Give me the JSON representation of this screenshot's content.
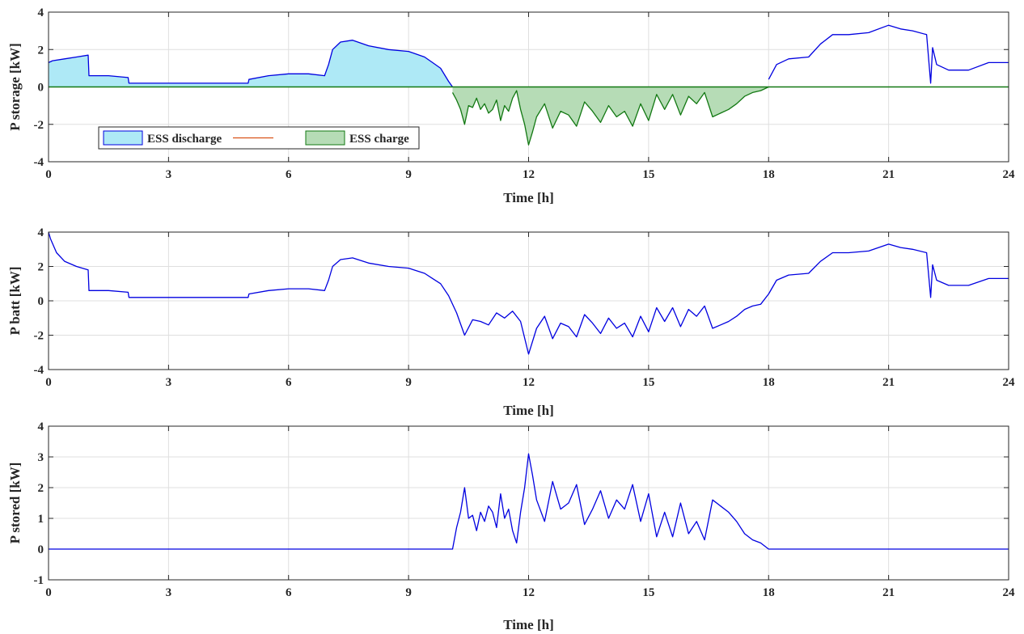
{
  "chart_data": [
    {
      "type": "area",
      "xlabel": "Time [h]",
      "ylabel": "P storage [kW]",
      "xlim": [
        0,
        24
      ],
      "ylim": [
        -4,
        4
      ],
      "xticks": [
        "0",
        "3",
        "6",
        "9",
        "12",
        "15",
        "18",
        "21",
        "24"
      ],
      "yticks": [
        "-4",
        "-2",
        "0",
        "2",
        "4"
      ],
      "grid": true,
      "legend_position": "lower-left",
      "series": [
        {
          "name": "ESS discharge",
          "fill_color": "#aee9f6",
          "line_color": "#0000e0",
          "x": [
            0,
            0.1,
            0.4,
            0.7,
            0.99,
            1.01,
            1.5,
            1.99,
            2.01,
            3,
            4,
            4.99,
            5.01,
            5.5,
            6,
            6.5,
            6.9,
            7.0,
            7.1,
            7.3,
            7.6,
            8,
            8.5,
            9,
            9.4,
            9.6,
            9.8,
            10.0,
            10.1
          ],
          "values": [
            1.3,
            1.4,
            1.5,
            1.6,
            1.7,
            0.6,
            0.6,
            0.5,
            0.2,
            0.2,
            0.2,
            0.2,
            0.4,
            0.6,
            0.7,
            0.7,
            0.6,
            1.2,
            2.0,
            2.4,
            2.5,
            2.2,
            2.0,
            1.9,
            1.6,
            1.3,
            1.0,
            0.3,
            0
          ]
        },
        {
          "name": "ESS charge",
          "fill_color": "#b6dcb6",
          "line_color": "#127812",
          "x": [
            10.1,
            10.2,
            10.3,
            10.4,
            10.5,
            10.6,
            10.7,
            10.8,
            10.9,
            11.0,
            11.1,
            11.2,
            11.3,
            11.4,
            11.5,
            11.6,
            11.7,
            11.8,
            11.9,
            12.0,
            12.1,
            12.2,
            12.4,
            12.6,
            12.8,
            13.0,
            13.2,
            13.4,
            13.6,
            13.8,
            14.0,
            14.2,
            14.4,
            14.6,
            14.8,
            15.0,
            15.2,
            15.4,
            15.6,
            15.8,
            16.0,
            16.2,
            16.4,
            16.6,
            16.8,
            17.0,
            17.2,
            17.4,
            17.6,
            17.8,
            18.0
          ],
          "values": [
            -0.3,
            -0.7,
            -1.2,
            -2.0,
            -1.0,
            -1.1,
            -0.6,
            -1.2,
            -0.9,
            -1.4,
            -1.2,
            -0.7,
            -1.8,
            -1.0,
            -1.3,
            -0.6,
            -0.2,
            -1.2,
            -2.0,
            -3.1,
            -2.4,
            -1.6,
            -0.9,
            -2.2,
            -1.3,
            -1.5,
            -2.1,
            -0.8,
            -1.3,
            -1.9,
            -1.0,
            -1.6,
            -1.3,
            -2.1,
            -0.9,
            -1.8,
            -0.4,
            -1.2,
            -0.4,
            -1.5,
            -0.5,
            -0.9,
            -0.3,
            -1.6,
            -1.4,
            -1.2,
            -0.9,
            -0.5,
            -0.3,
            -0.2,
            0
          ]
        },
        {
          "name": "",
          "line_color": "#0000e0",
          "x": [
            18.0,
            18.2,
            18.5,
            19.0,
            19.3,
            19.6,
            20.0,
            20.5,
            21.0,
            21.3,
            21.6,
            21.95,
            22.05,
            22.1,
            22.2,
            22.5,
            23.0,
            23.5,
            24.0
          ],
          "values": [
            0.4,
            1.2,
            1.5,
            1.6,
            2.3,
            2.8,
            2.8,
            2.9,
            3.3,
            3.1,
            3.0,
            2.8,
            0.2,
            2.1,
            1.2,
            0.9,
            0.9,
            1.3,
            1.3
          ]
        }
      ],
      "legend": [
        {
          "label": "ESS discharge",
          "swatch": "#aee9f6"
        },
        {
          "label": "",
          "swatch": "#d95319"
        },
        {
          "label": "ESS charge",
          "swatch": "#b6dcb6"
        }
      ]
    },
    {
      "type": "line",
      "xlabel": "Time [h]",
      "ylabel": "P batt [kW]",
      "xlim": [
        0,
        24
      ],
      "ylim": [
        -4,
        4
      ],
      "xticks": [
        "0",
        "3",
        "6",
        "9",
        "12",
        "15",
        "18",
        "21",
        "24"
      ],
      "yticks": [
        "-4",
        "-2",
        "0",
        "2",
        "4"
      ],
      "grid": true,
      "series": [
        {
          "name": "",
          "line_color": "#0000e0",
          "x": [
            0,
            0.05,
            0.2,
            0.4,
            0.7,
            0.99,
            1.01,
            1.5,
            1.99,
            2.01,
            3,
            4,
            4.99,
            5.01,
            5.5,
            6,
            6.5,
            6.9,
            7.0,
            7.1,
            7.3,
            7.6,
            8,
            8.5,
            9,
            9.4,
            9.6,
            9.8,
            10.0,
            10.2,
            10.4,
            10.6,
            10.8,
            11.0,
            11.2,
            11.4,
            11.6,
            11.8,
            12.0,
            12.2,
            12.4,
            12.6,
            12.8,
            13.0,
            13.2,
            13.4,
            13.6,
            13.8,
            14.0,
            14.2,
            14.4,
            14.6,
            14.8,
            15.0,
            15.2,
            15.4,
            15.6,
            15.8,
            16.0,
            16.2,
            16.4,
            16.6,
            16.8,
            17.0,
            17.2,
            17.4,
            17.6,
            17.8,
            18.0,
            18.2,
            18.5,
            19.0,
            19.3,
            19.6,
            20.0,
            20.5,
            21.0,
            21.3,
            21.6,
            21.95,
            22.05,
            22.1,
            22.2,
            22.5,
            23.0,
            23.5,
            24.0
          ],
          "values": [
            4.0,
            3.6,
            2.8,
            2.3,
            2.0,
            1.8,
            0.6,
            0.6,
            0.5,
            0.2,
            0.2,
            0.2,
            0.2,
            0.4,
            0.6,
            0.7,
            0.7,
            0.6,
            1.2,
            2.0,
            2.4,
            2.5,
            2.2,
            2.0,
            1.9,
            1.6,
            1.3,
            1.0,
            0.3,
            -0.7,
            -2.0,
            -1.1,
            -1.2,
            -1.4,
            -0.7,
            -1.0,
            -0.6,
            -1.2,
            -3.1,
            -1.6,
            -0.9,
            -2.2,
            -1.3,
            -1.5,
            -2.1,
            -0.8,
            -1.3,
            -1.9,
            -1.0,
            -1.6,
            -1.3,
            -2.1,
            -0.9,
            -1.8,
            -0.4,
            -1.2,
            -0.4,
            -1.5,
            -0.5,
            -0.9,
            -0.3,
            -1.6,
            -1.4,
            -1.2,
            -0.9,
            -0.5,
            -0.3,
            -0.2,
            0.4,
            1.2,
            1.5,
            1.6,
            2.3,
            2.8,
            2.8,
            2.9,
            3.3,
            3.1,
            3.0,
            2.8,
            0.2,
            2.1,
            1.2,
            0.9,
            0.9,
            1.3,
            1.3
          ]
        }
      ]
    },
    {
      "type": "line",
      "xlabel": "Time [h]",
      "ylabel": "P stored [kW]",
      "xlim": [
        0,
        24
      ],
      "ylim": [
        -1,
        4
      ],
      "xticks": [
        "0",
        "3",
        "6",
        "9",
        "12",
        "15",
        "18",
        "21",
        "24"
      ],
      "yticks": [
        "-1",
        "0",
        "1",
        "2",
        "3",
        "4"
      ],
      "grid": true,
      "series": [
        {
          "name": "",
          "line_color": "#0000e0",
          "x": [
            0,
            10.1,
            10.2,
            10.3,
            10.4,
            10.5,
            10.6,
            10.7,
            10.8,
            10.9,
            11.0,
            11.1,
            11.2,
            11.3,
            11.4,
            11.5,
            11.6,
            11.7,
            11.8,
            11.9,
            12.0,
            12.1,
            12.2,
            12.4,
            12.6,
            12.8,
            13.0,
            13.2,
            13.4,
            13.6,
            13.8,
            14.0,
            14.2,
            14.4,
            14.6,
            14.8,
            15.0,
            15.2,
            15.4,
            15.6,
            15.8,
            16.0,
            16.2,
            16.4,
            16.6,
            16.8,
            17.0,
            17.2,
            17.4,
            17.6,
            17.8,
            18.0,
            24
          ],
          "values": [
            0,
            0,
            0.7,
            1.2,
            2.0,
            1.0,
            1.1,
            0.6,
            1.2,
            0.9,
            1.4,
            1.2,
            0.7,
            1.8,
            1.0,
            1.3,
            0.6,
            0.2,
            1.2,
            2.0,
            3.1,
            2.4,
            1.6,
            0.9,
            2.2,
            1.3,
            1.5,
            2.1,
            0.8,
            1.3,
            1.9,
            1.0,
            1.6,
            1.3,
            2.1,
            0.9,
            1.8,
            0.4,
            1.2,
            0.4,
            1.5,
            0.5,
            0.9,
            0.3,
            1.6,
            1.4,
            1.2,
            0.9,
            0.5,
            0.3,
            0.2,
            0,
            0
          ]
        }
      ]
    }
  ]
}
